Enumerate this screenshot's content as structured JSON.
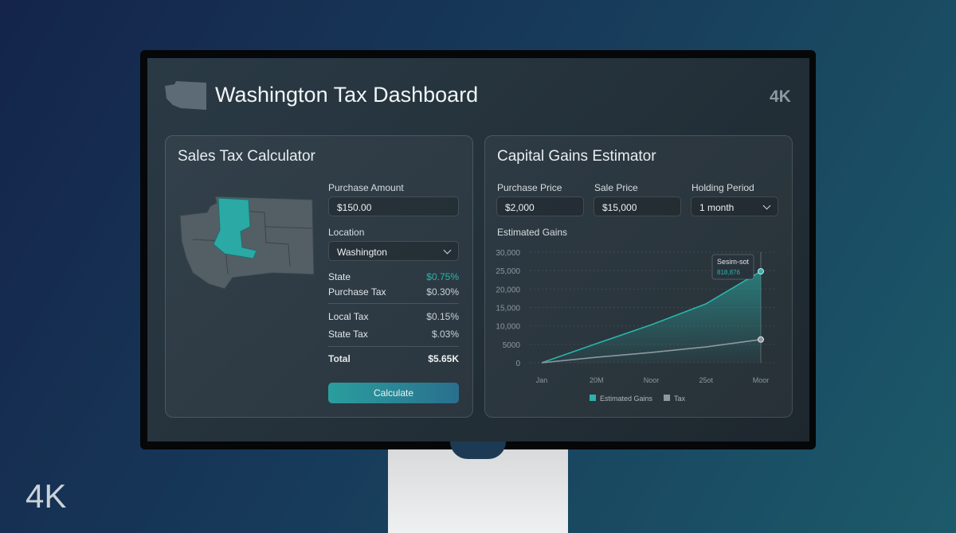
{
  "header": {
    "title": "Washington Tax Dashboard",
    "badge": "4K"
  },
  "corner_badge": "4K",
  "sales_tax": {
    "title": "Sales Tax Calculator",
    "purchase_amount": {
      "label": "Purchase Amount",
      "value": "$150.00"
    },
    "location": {
      "label": "Location",
      "value": "Washington"
    },
    "rows": [
      [
        "State",
        "$0.75%"
      ],
      [
        "Purchase Tax",
        "$0.30%"
      ],
      [
        "Local Tax",
        "$0.15%"
      ],
      [
        "State Tax",
        "$.03%"
      ]
    ],
    "total": [
      "Total",
      "$5.65K"
    ],
    "button": "Calculate"
  },
  "capital_gains": {
    "title": "Capital Gains Estimator",
    "fields": [
      {
        "label": "Purchase Price",
        "value": "$2,000"
      },
      {
        "label": "Sale Price",
        "value": "$15,000"
      },
      {
        "label": "Holding Period",
        "value": "1 month"
      }
    ],
    "chart": {
      "type": "line",
      "title": "Estimated Gains",
      "categories": [
        "Jan",
        "20M",
        "Noor",
        "25ot",
        "Moor"
      ],
      "series": [
        {
          "name": "Estimated Gains",
          "color": "#2bb3ad",
          "values": [
            0,
            5200,
            10300,
            16000,
            24800
          ]
        },
        {
          "name": "Tax",
          "color": "#8f989e",
          "values": [
            0,
            1500,
            2800,
            4300,
            6300
          ]
        }
      ],
      "ylim": [
        0,
        30000
      ],
      "yticks": [
        0,
        5000,
        {
          "value": 10000,
          "label": "10,000"
        },
        {
          "value": 15000,
          "label": "15,000"
        },
        {
          "value": 20000,
          "label": "20,000"
        },
        {
          "value": 25000,
          "label": "25,000"
        },
        {
          "value": 30000,
          "label": "30,000"
        }
      ],
      "grid": true,
      "tooltip": {
        "title": "Sesim-sot",
        "value": "818,876"
      }
    }
  }
}
